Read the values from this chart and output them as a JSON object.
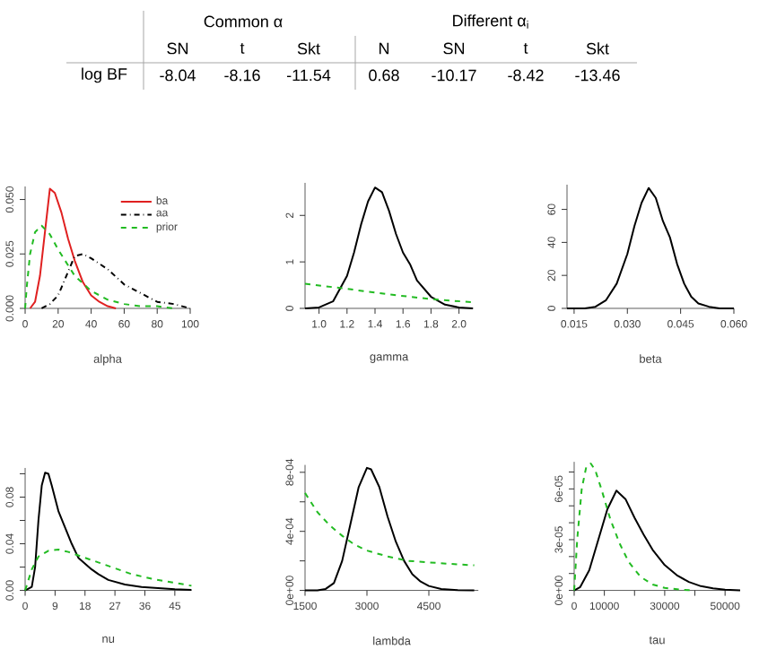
{
  "chart_data": [
    {
      "type": "heatmap",
      "y_categories": [
        "log BF"
      ],
      "categories": [
        "SN",
        "t",
        "Skt",
        "N",
        "SN",
        "t",
        "Skt"
      ],
      "cells": [
        [
          -8.04,
          -8.16,
          -11.54,
          0.68,
          -10.17,
          -8.42,
          -13.46
        ]
      ],
      "data_labels": true,
      "annotations": [
        "Common α",
        "Different α$_{i}$"
      ]
    },
    {
      "type": "line",
      "xlabel": "alpha",
      "xlim": [
        0,
        100
      ],
      "ylim": [
        0,
        0.056
      ],
      "xticks": [
        0,
        20,
        40,
        60,
        80,
        100
      ],
      "yticks": [
        {
          "value": 0,
          "label": "0.000"
        },
        {
          "value": 0.025,
          "label": "0.025"
        },
        {
          "value": 0.05,
          "label": "0.050"
        }
      ],
      "legend": "top right",
      "series": [
        {
          "name": "ba",
          "color": "#e02020",
          "line_style": "solid",
          "x": [
            3,
            6,
            9,
            12,
            15,
            18,
            22,
            26,
            30,
            35,
            40,
            45,
            50,
            55
          ],
          "values": [
            0,
            0.003,
            0.015,
            0.035,
            0.055,
            0.053,
            0.044,
            0.032,
            0.022,
            0.012,
            0.006,
            0.003,
            0.001,
            0
          ]
        },
        {
          "name": "aa",
          "color": "#000000",
          "line_style": "dashdot",
          "x": [
            10,
            15,
            20,
            25,
            30,
            35,
            40,
            50,
            60,
            70,
            80,
            90,
            95,
            100
          ],
          "values": [
            0,
            0.002,
            0.006,
            0.015,
            0.024,
            0.025,
            0.023,
            0.018,
            0.011,
            0.007,
            0.003,
            0.002,
            0.001,
            0
          ]
        },
        {
          "name": "prior",
          "color": "#22bb22",
          "line_style": "dashed",
          "x": [
            0,
            1,
            3,
            6,
            10,
            15,
            20,
            25,
            30,
            40,
            50,
            60,
            70,
            80,
            90
          ],
          "values": [
            0,
            0.01,
            0.025,
            0.035,
            0.038,
            0.034,
            0.027,
            0.021,
            0.015,
            0.008,
            0.004,
            0.002,
            0.001,
            0.001,
            0
          ]
        }
      ]
    },
    {
      "type": "line",
      "xlabel": "gamma",
      "xlim": [
        0.9,
        2.1
      ],
      "ylim": [
        0,
        2.7
      ],
      "xticks": [
        {
          "value": 1,
          "label": "1.0"
        },
        {
          "value": 1.2,
          "label": "1.2"
        },
        {
          "value": 1.4,
          "label": "1.4"
        },
        {
          "value": 1.6,
          "label": "1.6"
        },
        {
          "value": 1.8,
          "label": "1.8"
        },
        {
          "value": 2,
          "label": "2.0"
        }
      ],
      "yticks": [
        0,
        1,
        2
      ],
      "series": [
        {
          "color": "#000000",
          "line_style": "solid",
          "x": [
            0.9,
            1.0,
            1.1,
            1.2,
            1.25,
            1.3,
            1.35,
            1.4,
            1.45,
            1.5,
            1.55,
            1.6,
            1.65,
            1.7,
            1.8,
            1.9,
            2.0,
            2.1
          ],
          "values": [
            0,
            0.02,
            0.15,
            0.7,
            1.2,
            1.8,
            2.3,
            2.6,
            2.5,
            2.1,
            1.6,
            1.2,
            0.95,
            0.6,
            0.25,
            0.08,
            0.02,
            0
          ]
        },
        {
          "color": "#22bb22",
          "line_style": "dashed",
          "x": [
            0.9,
            1.2,
            1.5,
            1.8,
            2.1
          ],
          "values": [
            0.53,
            0.42,
            0.3,
            0.2,
            0.13
          ]
        }
      ]
    },
    {
      "type": "line",
      "xlabel": "beta",
      "xlim": [
        0.013,
        0.06
      ],
      "ylim": [
        0,
        75
      ],
      "xticks": [
        0.015,
        {
          "value": 0.03,
          "label": "0.030"
        },
        0.045,
        {
          "value": 0.06,
          "label": "0.060"
        }
      ],
      "yticks": [
        0,
        20,
        40,
        60
      ],
      "series": [
        {
          "color": "#000000",
          "line_style": "solid",
          "x": [
            0.013,
            0.018,
            0.021,
            0.024,
            0.027,
            0.03,
            0.032,
            0.034,
            0.036,
            0.038,
            0.04,
            0.042,
            0.044,
            0.046,
            0.048,
            0.05,
            0.053,
            0.056,
            0.06
          ],
          "values": [
            0,
            0,
            1,
            5,
            15,
            33,
            50,
            64,
            73,
            67,
            53,
            43,
            27,
            15,
            7,
            3,
            1,
            0,
            0
          ]
        }
      ]
    },
    {
      "type": "line",
      "xlabel": "nu",
      "xlim": [
        0,
        50
      ],
      "ylim": [
        0,
        0.105
      ],
      "xticks": [
        0,
        9,
        18,
        27,
        36,
        45
      ],
      "yticks": [
        {
          "value": 0,
          "label": "0.00"
        },
        {
          "value": 0.02,
          "label": null
        },
        {
          "value": 0.04,
          "label": "0.04"
        },
        {
          "value": 0.06,
          "label": null
        },
        {
          "value": 0.08,
          "label": "0.08"
        },
        {
          "value": 0.1,
          "label": null
        }
      ],
      "series": [
        {
          "color": "#000000",
          "line_style": "solid",
          "x": [
            0,
            2,
            3,
            4,
            5,
            6,
            7,
            8,
            10,
            12,
            14,
            16,
            20,
            22,
            25,
            30,
            35,
            40,
            45,
            50
          ],
          "values": [
            0,
            0.003,
            0.02,
            0.06,
            0.09,
            0.101,
            0.1,
            0.09,
            0.068,
            0.054,
            0.04,
            0.028,
            0.018,
            0.014,
            0.009,
            0.005,
            0.003,
            0.002,
            0.001,
            0.0005
          ]
        },
        {
          "color": "#22bb22",
          "line_style": "dashed",
          "x": [
            0,
            2,
            4,
            7,
            10,
            13,
            17,
            22,
            27,
            32,
            38,
            44,
            50
          ],
          "values": [
            0,
            0.018,
            0.029,
            0.034,
            0.035,
            0.033,
            0.029,
            0.024,
            0.019,
            0.014,
            0.01,
            0.007,
            0.004
          ]
        }
      ]
    },
    {
      "type": "line",
      "xlabel": "lambda",
      "xlim": [
        1500,
        5700
      ],
      "ylim": [
        0,
        0.00085
      ],
      "xticks": [
        1500,
        3000,
        4500
      ],
      "yticks": [
        {
          "value": 0,
          "label": "0e+00"
        },
        {
          "value": 0.0002,
          "label": null
        },
        {
          "value": 0.0004,
          "label": "4e-04"
        },
        {
          "value": 0.0006,
          "label": null
        },
        {
          "value": 0.0008,
          "label": "8e-04"
        }
      ],
      "series": [
        {
          "color": "#000000",
          "line_style": "solid",
          "x": [
            1500,
            1800,
            2000,
            2200,
            2400,
            2600,
            2800,
            3000,
            3100,
            3300,
            3500,
            3700,
            3900,
            4100,
            4300,
            4500,
            4800,
            5200,
            5600
          ],
          "values": [
            0,
            0,
            1e-05,
            5e-05,
            0.0002,
            0.00045,
            0.0007,
            0.00083,
            0.00082,
            0.0007,
            0.0005,
            0.00033,
            0.0002,
            0.00011,
            6e-05,
            3e-05,
            1e-05,
            2e-06,
            0
          ]
        },
        {
          "color": "#22bb22",
          "line_style": "dashed",
          "x": [
            1500,
            1800,
            2100,
            2400,
            2700,
            3000,
            3500,
            4000,
            4500,
            5000,
            5600
          ],
          "values": [
            0.00066,
            0.00053,
            0.00044,
            0.00037,
            0.00031,
            0.00027,
            0.00023,
            0.0002,
            0.00019,
            0.00018,
            0.00017
          ]
        }
      ]
    },
    {
      "type": "line",
      "xlabel": "tau",
      "xlim": [
        0,
        55000
      ],
      "ylim": [
        0,
        7.6e-05
      ],
      "xticks": [
        0,
        10000,
        {
          "value": 20000,
          "label": null
        },
        30000,
        {
          "value": 40000,
          "label": null
        },
        50000
      ],
      "yticks": [
        {
          "value": 0,
          "label": "0e+00"
        },
        {
          "value": 1e-05,
          "label": null
        },
        {
          "value": 2e-05,
          "label": null
        },
        {
          "value": 3e-05,
          "label": "3e-05"
        },
        {
          "value": 4e-05,
          "label": null
        },
        {
          "value": 5e-05,
          "label": null
        },
        {
          "value": 6e-05,
          "label": "6e-05"
        },
        {
          "value": 7e-05,
          "label": null
        }
      ],
      "series": [
        {
          "color": "#000000",
          "line_style": "solid",
          "x": [
            0,
            2000,
            5000,
            8000,
            11000,
            14000,
            17000,
            20000,
            23000,
            26000,
            30000,
            34000,
            38000,
            42000,
            46000,
            50000,
            55000
          ],
          "values": [
            0,
            2e-06,
            1.2e-05,
            3e-05,
            4.8e-05,
            5.9e-05,
            5.4e-05,
            4.3e-05,
            3.3e-05,
            2.4e-05,
            1.5e-05,
            9e-06,
            5e-06,
            2.5e-06,
            1.2e-06,
            5e-07,
            0
          ]
        },
        {
          "color": "#22bb22",
          "line_style": "dashed",
          "x": [
            0,
            1000,
            2500,
            4000,
            5500,
            7000,
            9000,
            12000,
            15000,
            18000,
            22000,
            26000,
            30000,
            35000,
            40000
          ],
          "values": [
            0,
            3e-05,
            6e-05,
            7.3e-05,
            7.5e-05,
            7.1e-05,
            6e-05,
            4.2e-05,
            2.8e-05,
            1.7e-05,
            8e-06,
            3.5e-06,
            1.5e-06,
            5e-07,
            0
          ]
        }
      ]
    }
  ]
}
